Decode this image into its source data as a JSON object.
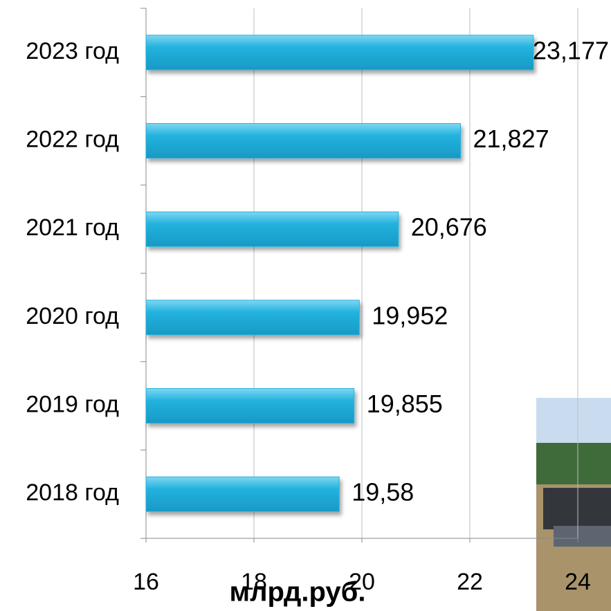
{
  "chart_data": {
    "type": "hbar",
    "categories": [
      "2023 год",
      "2022 год",
      "2021 год",
      "2020 год",
      "2019 год",
      "2018 год"
    ],
    "values": [
      23.177,
      21.827,
      20.676,
      19.952,
      19.855,
      19.58
    ],
    "value_labels": [
      "23,177",
      "21,827",
      "20,676",
      "19,952",
      "19,855",
      "19,58"
    ],
    "color": "#22b2de",
    "xlim": [
      16,
      24
    ],
    "xticks": [
      16,
      18,
      20,
      22,
      24
    ],
    "grid": true,
    "xlabel": "млрд.руб."
  }
}
